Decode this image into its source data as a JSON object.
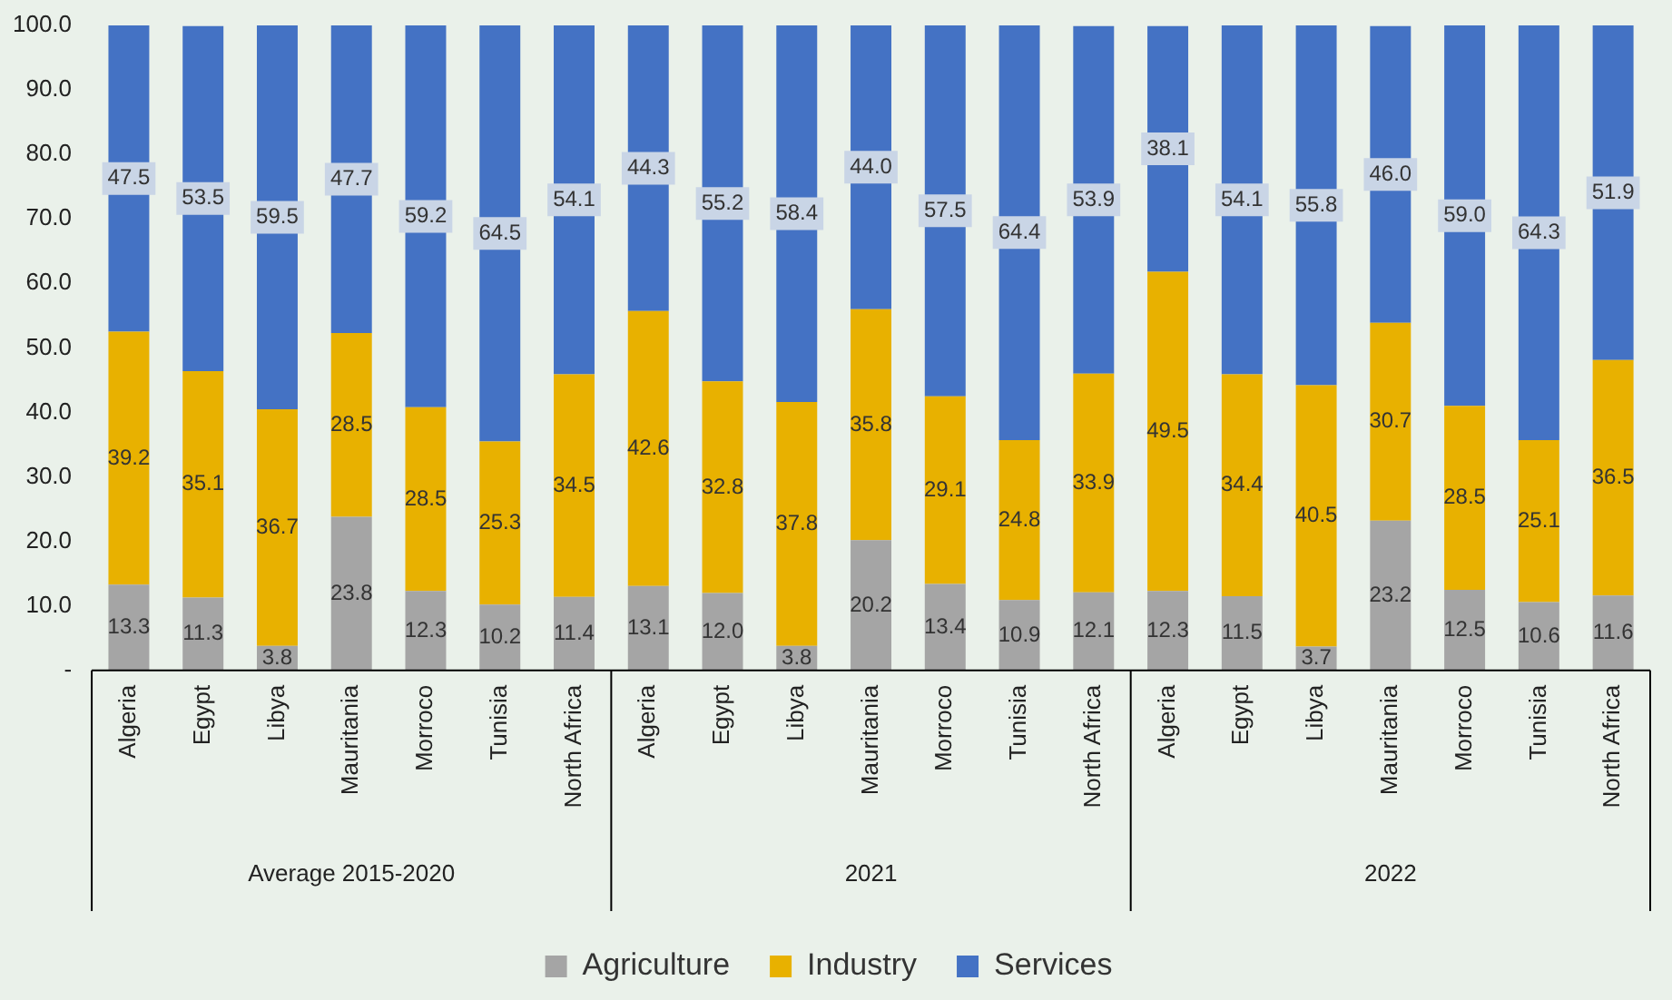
{
  "chart_data": {
    "type": "bar",
    "stacked": true,
    "legend": "bottom",
    "grid": false,
    "categories": [
      "Algeria",
      "Egypt",
      "Libya",
      "Mauritania",
      "Morroco",
      "Tunisia",
      "North Africa",
      "Algeria",
      "Egypt",
      "Libya",
      "Mauritania",
      "Morroco",
      "Tunisia",
      "North Africa",
      "Algeria",
      "Egypt",
      "Libya",
      "Mauritania",
      "Morroco",
      "Tunisia",
      "North Africa"
    ],
    "annotations": [
      "Average 2015-2020",
      "2021",
      "2022"
    ],
    "ylim": [
      0,
      100
    ],
    "yticks": [
      {
        "value": 0,
        "label": "-"
      },
      {
        "value": 10,
        "label": "10.0"
      },
      {
        "value": 20,
        "label": "20.0"
      },
      {
        "value": 30,
        "label": "30.0"
      },
      {
        "value": 40,
        "label": "40.0"
      },
      {
        "value": 50,
        "label": "50.0"
      },
      {
        "value": 60,
        "label": "60.0"
      },
      {
        "value": 70,
        "label": "70.0"
      },
      {
        "value": 80,
        "label": "80.0"
      },
      {
        "value": 90,
        "label": "90.0"
      },
      {
        "value": 100,
        "label": "100.0"
      }
    ],
    "series": [
      {
        "name": "Agriculture",
        "color": "#a5a5a5",
        "values": [
          13.3,
          11.3,
          3.8,
          23.8,
          12.3,
          10.2,
          11.4,
          13.1,
          12.0,
          3.8,
          20.2,
          13.4,
          10.9,
          12.1,
          12.3,
          11.5,
          3.7,
          23.2,
          12.5,
          10.6,
          11.6
        ],
        "value_labels": [
          "13.3",
          "11.3",
          "3.8",
          "23.8",
          "12.3",
          "10.2",
          "11.4",
          "13.1",
          "12.0",
          "3.8",
          "20.2",
          "13.4",
          "10.9",
          "12.1",
          "12.3",
          "11.5",
          "3.7",
          "23.2",
          "12.5",
          "10.6",
          "11.6"
        ]
      },
      {
        "name": "Industry",
        "color": "#e8b100",
        "values": [
          39.2,
          35.1,
          36.7,
          28.5,
          28.5,
          25.3,
          34.5,
          42.6,
          32.8,
          37.8,
          35.8,
          29.1,
          24.8,
          33.9,
          49.5,
          34.4,
          40.5,
          30.7,
          28.5,
          25.1,
          36.5
        ],
        "value_labels": [
          "39.2",
          "35.1",
          "36.7",
          "28.5",
          "28.5",
          "25.3",
          "34.5",
          "42.6",
          "32.8",
          "37.8",
          "35.8",
          "29.1",
          "24.8",
          "33.9",
          "49.5",
          "34.4",
          "40.5",
          "30.7",
          "28.5",
          "25.1",
          "36.5"
        ]
      },
      {
        "name": "Services",
        "color": "#4472c4",
        "values": [
          47.5,
          53.5,
          59.5,
          47.7,
          59.2,
          64.5,
          54.1,
          44.3,
          55.2,
          58.4,
          44.0,
          57.5,
          64.4,
          53.9,
          38.1,
          54.1,
          55.8,
          46.0,
          59.0,
          64.3,
          51.9
        ],
        "value_labels": [
          "47.5",
          "53.5",
          "59.5",
          "47.7",
          "59.2",
          "64.5",
          "54.1",
          "44.3",
          "55.2",
          "58.4",
          "44.0",
          "57.5",
          "64.4",
          "53.9",
          "38.1",
          "54.1",
          "55.8",
          "46.0",
          "59.0",
          "64.3",
          "51.9"
        ]
      }
    ]
  }
}
